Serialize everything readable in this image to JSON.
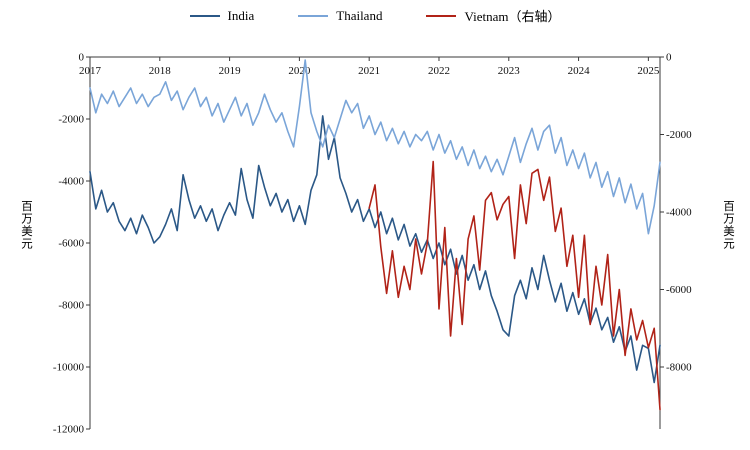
{
  "chart_data": {
    "type": "line",
    "title": "",
    "x_unit": "month",
    "x_start": "2017-01",
    "x_end": "2025-03",
    "x_tick_labels": [
      "2017",
      "2018",
      "2019",
      "2020",
      "2021",
      "2022",
      "2023",
      "2024",
      "2025"
    ],
    "left_axis": {
      "label": "百万美元",
      "max": 0,
      "min": -12000,
      "ticks": [
        0,
        -2000,
        -4000,
        -6000,
        -8000,
        -10000,
        -12000
      ]
    },
    "right_axis": {
      "label": "百万美元",
      "max": 0,
      "min": -9600,
      "ticks": [
        0,
        -2000,
        -4000,
        -6000,
        -8000
      ]
    },
    "legend_position": "top",
    "grid": false,
    "series": [
      {
        "name": "India",
        "axis": "left",
        "color": "#2b5887",
        "start_index": 0,
        "values": [
          -3700,
          -4900,
          -4300,
          -5000,
          -4700,
          -5300,
          -5600,
          -5200,
          -5700,
          -5100,
          -5500,
          -6000,
          -5800,
          -5400,
          -4900,
          -5600,
          -3800,
          -4600,
          -5200,
          -4800,
          -5300,
          -4900,
          -5600,
          -5100,
          -4700,
          -5100,
          -3600,
          -4600,
          -5200,
          -3500,
          -4200,
          -4800,
          -4400,
          -5000,
          -4600,
          -5300,
          -4800,
          -5400,
          -4300,
          -3800,
          -1900,
          -3300,
          -2600,
          -3900,
          -4400,
          -5000,
          -4600,
          -5300,
          -4900,
          -5500,
          -5000,
          -5700,
          -5200,
          -5900,
          -5400,
          -6100,
          -5700,
          -6300,
          -5900,
          -6500,
          -6000,
          -6700,
          -6200,
          -7000,
          -6400,
          -7200,
          -6700,
          -7500,
          -6900,
          -7700,
          -8200,
          -8800,
          -9000,
          -7700,
          -7200,
          -7800,
          -6800,
          -7500,
          -6400,
          -7200,
          -7900,
          -7300,
          -8200,
          -7600,
          -8300,
          -7800,
          -8600,
          -8100,
          -8800,
          -8400,
          -9200,
          -8700,
          -9500,
          -9000,
          -10100,
          -9300,
          -9400,
          -10500,
          -9300
        ]
      },
      {
        "name": "Thailand",
        "axis": "left",
        "color": "#7aa5d8",
        "start_index": 0,
        "values": [
          -1000,
          -1800,
          -1200,
          -1500,
          -1100,
          -1600,
          -1300,
          -1000,
          -1500,
          -1200,
          -1600,
          -1300,
          -1200,
          -800,
          -1400,
          -1100,
          -1700,
          -1300,
          -1000,
          -1600,
          -1300,
          -1900,
          -1500,
          -2100,
          -1700,
          -1300,
          -1900,
          -1500,
          -2200,
          -1800,
          -1200,
          -1700,
          -2100,
          -1800,
          -2400,
          -2900,
          -1600,
          -100,
          -1800,
          -2400,
          -2900,
          -2200,
          -2600,
          -2000,
          -1400,
          -1800,
          -1500,
          -2300,
          -1900,
          -2500,
          -2100,
          -2700,
          -2300,
          -2800,
          -2400,
          -2900,
          -2500,
          -2700,
          -2400,
          -3000,
          -2500,
          -3100,
          -2700,
          -3300,
          -2900,
          -3500,
          -3000,
          -3600,
          -3200,
          -3700,
          -3300,
          -3800,
          -3200,
          -2600,
          -3400,
          -2800,
          -2300,
          -3000,
          -2400,
          -2200,
          -3100,
          -2600,
          -3500,
          -3000,
          -3600,
          -3100,
          -3900,
          -3400,
          -4200,
          -3700,
          -4500,
          -3900,
          -4700,
          -4100,
          -4900,
          -4400,
          -5700,
          -4800,
          -3400
        ]
      },
      {
        "name": "Vietnam（右轴）",
        "axis": "right",
        "color": "#b12318",
        "start_index": 48,
        "values": [
          -3900,
          -3300,
          -4900,
          -6100,
          -5000,
          -6200,
          -5400,
          -6000,
          -4700,
          -5600,
          -4800,
          -2700,
          -6500,
          -4400,
          -7200,
          -5200,
          -6900,
          -4700,
          -4100,
          -5500,
          -3700,
          -3500,
          -4200,
          -3800,
          -3600,
          -5200,
          -3300,
          -4300,
          -3000,
          -2900,
          -3700,
          -3100,
          -4500,
          -3900,
          -5400,
          -4600,
          -6200,
          -4600,
          -6900,
          -5400,
          -6400,
          -5100,
          -7200,
          -6000,
          -7700,
          -6500,
          -7300,
          -6800,
          -7500,
          -7000,
          -9100
        ]
      }
    ]
  }
}
